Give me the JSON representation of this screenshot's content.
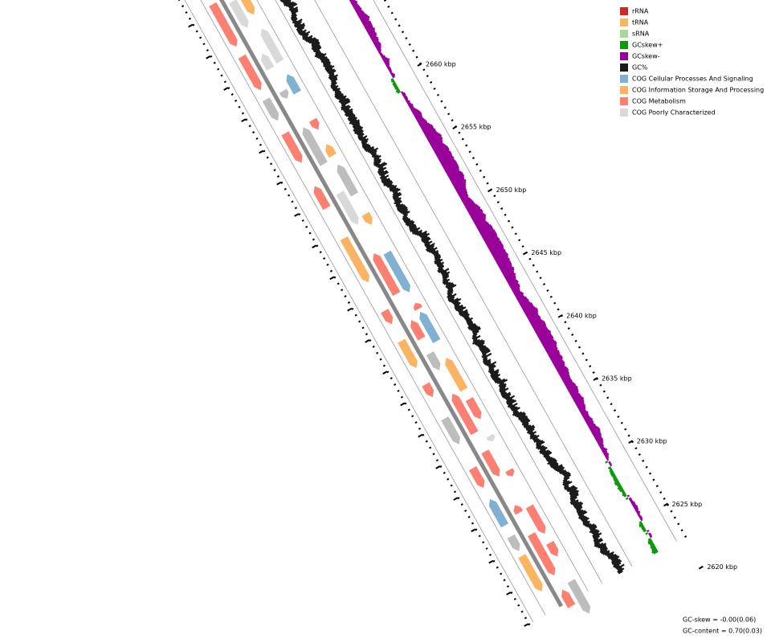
{
  "legend": [
    {
      "label": "rRNA",
      "color": "#d62728"
    },
    {
      "label": "tRNA",
      "color": "#fdb462"
    },
    {
      "label": "sRNA",
      "color": "#a6d89a"
    },
    {
      "label": "GCskew+",
      "color": "#0a9a0a"
    },
    {
      "label": "GCskew-",
      "color": "#990099"
    },
    {
      "label": "GC%",
      "color": "#1a1a1a"
    },
    {
      "label": "COG Cellular Processes And Signaling",
      "color": "#80b1d3"
    },
    {
      "label": "COG Information Storage And Processing",
      "color": "#fdb462"
    },
    {
      "label": "COG Metabolism",
      "color": "#fb8072"
    },
    {
      "label": "COG Poorly Characterized",
      "color": "#d9d9d9"
    }
  ],
  "scale_labels": [
    "2660 kbp",
    "2655 kbp",
    "2650 kbp",
    "2645 kbp",
    "2640 kbp",
    "2635 kbp",
    "2630 kbp",
    "2625 kbp",
    "2620 kbp"
  ],
  "stats": [
    "GC-skew = -0.00(0.06)",
    "GC-content = 0.70(0.03)"
  ]
}
